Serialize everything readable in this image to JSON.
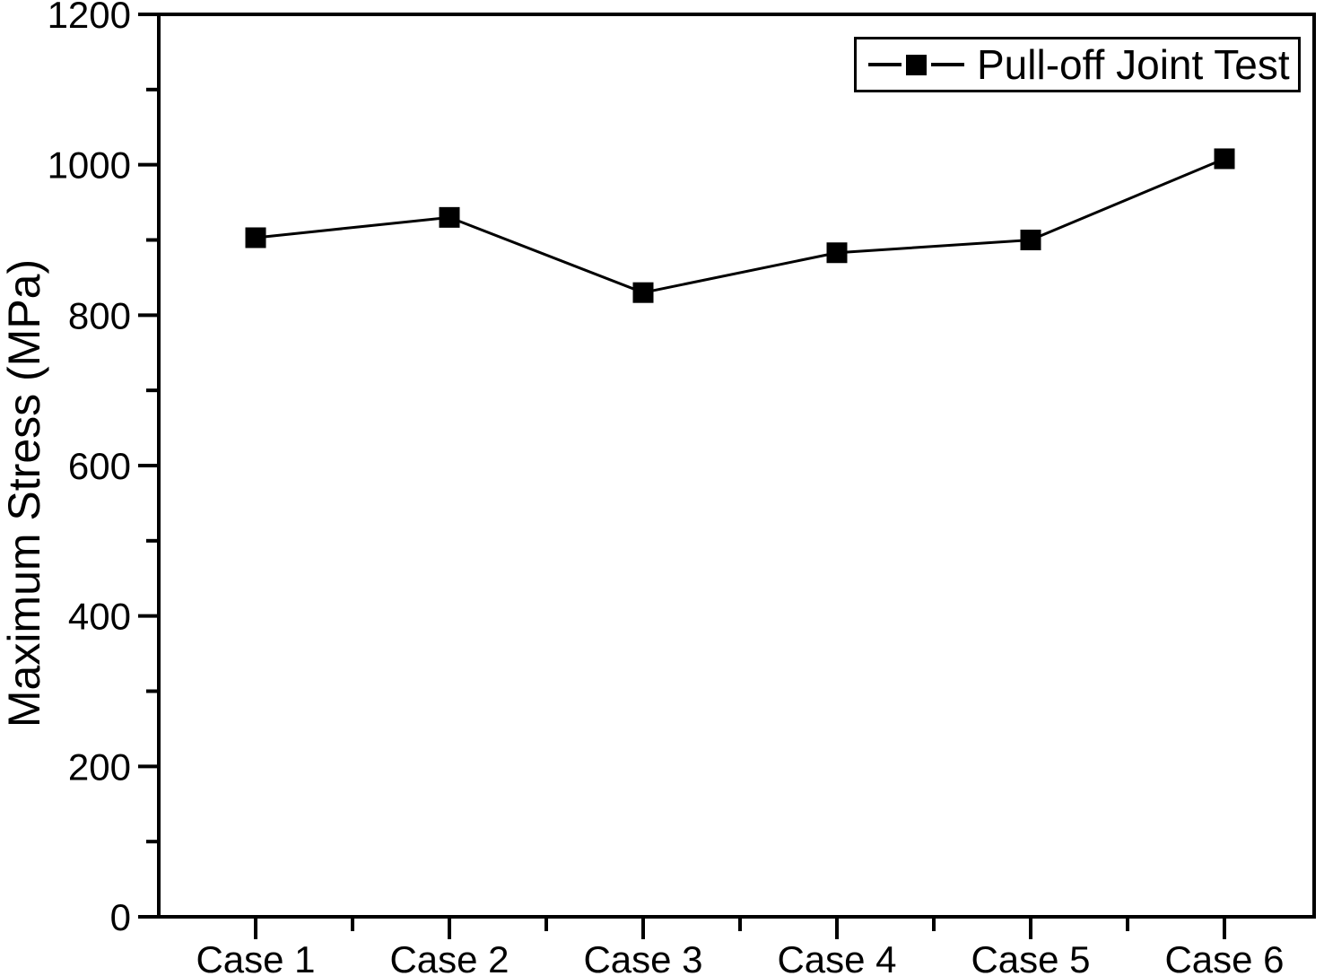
{
  "figure": {
    "background": "#ffffff",
    "ink_color": "#000000"
  },
  "chart_data": {
    "type": "line",
    "title": "",
    "xlabel": "",
    "ylabel": "Maximum Stress (MPa)",
    "categories": [
      "Case 1",
      "Case 2",
      "Case 3",
      "Case 4",
      "Case 5",
      "Case 6"
    ],
    "series": [
      {
        "name": "Pull-off Joint Test",
        "marker": "filled-square",
        "color": "#000000",
        "values": [
          903,
          930,
          830,
          883,
          900,
          1008
        ]
      }
    ],
    "ylim": [
      0,
      1200
    ],
    "y_major_tick_step": 200,
    "y_minor_tick_step": 100,
    "y_tick_labels": [
      "0",
      "200",
      "400",
      "600",
      "800",
      "1000",
      "1200"
    ],
    "grid": false,
    "legend": {
      "label": "Pull-off Joint Test",
      "position": "top-right",
      "bordered": true
    }
  }
}
